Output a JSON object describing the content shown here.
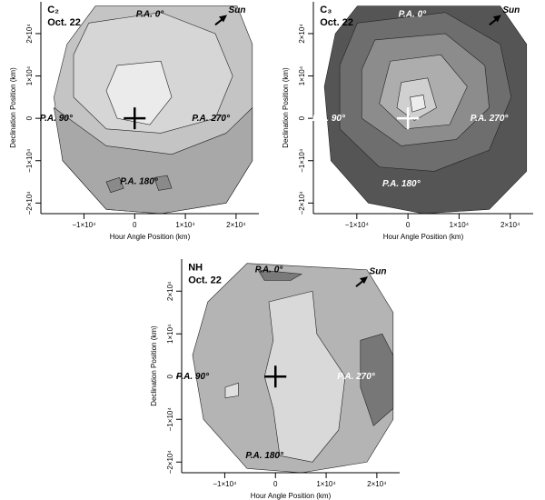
{
  "chart_data": [
    {
      "type": "contour",
      "title": "C₂",
      "subtitle": "Oct. 22",
      "xlabel": "Hour Angle Position (km)",
      "ylabel": "Declination Position (km)",
      "xlim": [
        -18500,
        24500
      ],
      "ylim": [
        -22500,
        27500
      ],
      "xticks": [
        {
          "value": -10000,
          "label": "−1×10⁴"
        },
        0,
        {
          "value": 10000,
          "label": "1×10⁴"
        },
        {
          "value": 20000,
          "label": "2×10⁴"
        }
      ],
      "yticks": [
        {
          "value": -20000,
          "label": "−2×10⁴"
        },
        {
          "value": -10000,
          "label": "−1×10⁴"
        },
        0,
        {
          "value": 10000,
          "label": "1×10⁴"
        },
        {
          "value": 20000,
          "label": "2×10⁴"
        }
      ],
      "annotations": [
        "P.A. 0°",
        "P.A. 90°",
        "P.A. 180°",
        "P.A. 270°",
        "Sun"
      ]
    },
    {
      "type": "contour",
      "title": "C₃",
      "subtitle": "Oct. 22",
      "xlabel": "Hour Angle Position (km)",
      "ylabel": "Declination Position (km)",
      "xlim": [
        -18500,
        24500
      ],
      "ylim": [
        -22500,
        27500
      ],
      "xticks": [
        {
          "value": -10000,
          "label": "−1×10⁴"
        },
        0,
        {
          "value": 10000,
          "label": "1×10⁴"
        },
        {
          "value": 20000,
          "label": "2×10⁴"
        }
      ],
      "yticks": [
        {
          "value": -20000,
          "label": "−2×10⁴"
        },
        {
          "value": -10000,
          "label": "−1×10⁴"
        },
        0,
        {
          "value": 10000,
          "label": "1×10⁴"
        },
        {
          "value": 20000,
          "label": "2×10⁴"
        }
      ],
      "annotations": [
        "P.A. 0°",
        "P.A. 90°",
        "P.A. 180°",
        "P.A. 270°",
        "Sun"
      ]
    },
    {
      "type": "contour",
      "title": "NH",
      "subtitle": "Oct. 22",
      "xlabel": "Hour Angle Position (km)",
      "ylabel": "Declination Position (km)",
      "xlim": [
        -18500,
        24500
      ],
      "ylim": [
        -22500,
        27500
      ],
      "xticks": [
        {
          "value": -10000,
          "label": "−1×10⁴"
        },
        0,
        {
          "value": 10000,
          "label": "1×10⁴"
        },
        {
          "value": 20000,
          "label": "2×10⁴"
        }
      ],
      "yticks": [
        {
          "value": -20000,
          "label": "−2×10⁴"
        },
        {
          "value": -10000,
          "label": "−1×10⁴"
        },
        0,
        {
          "value": 10000,
          "label": "1×10⁴"
        },
        {
          "value": 20000,
          "label": "2×10⁴"
        }
      ],
      "annotations": [
        "P.A. 0°",
        "P.A. 90°",
        "P.A. 180°",
        "P.A. 270°",
        "Sun"
      ]
    }
  ]
}
